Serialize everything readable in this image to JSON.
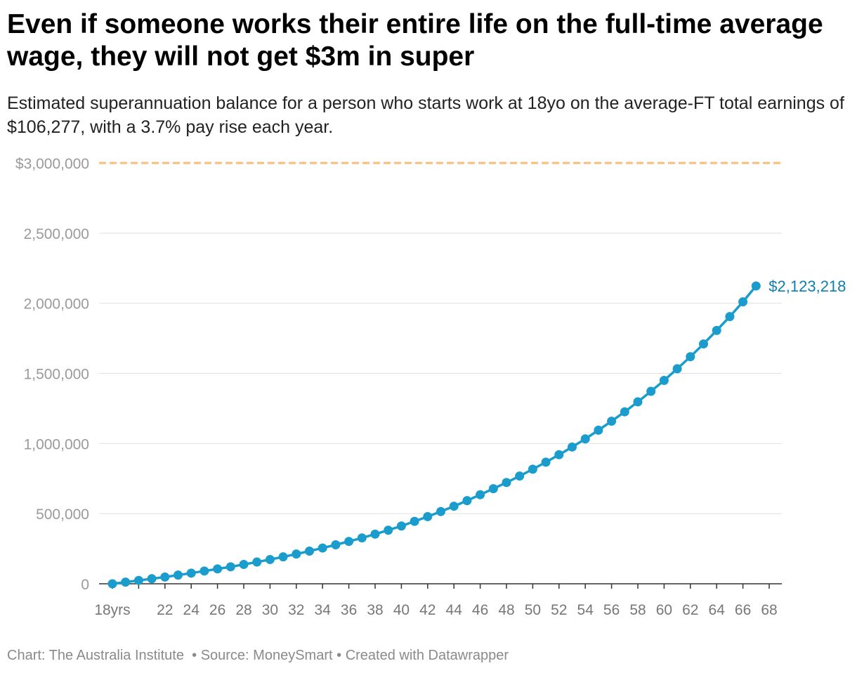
{
  "header": {
    "title": "Even if someone works their entire life on the full-time average wage, they will not get $3m in super",
    "subtitle": "Estimated superannuation balance for a person who starts work at 18yo on the average-FT total earnings of $106,277, with a 3.7% pay rise each year."
  },
  "footer": {
    "chart_credit": "Chart: The Australia Institute",
    "source": "Source: MoneySmart",
    "created_with": "Created with Datawrapper",
    "separator": "•"
  },
  "chart_data": {
    "type": "line",
    "title": "Even if someone works their entire life on the full-time average wage, they will not get $3m in super",
    "subtitle": "Estimated superannuation balance for a person who starts work at 18yo on the average-FT total earnings of $106,277, with a 3.7% pay rise each year.",
    "xlabel": "",
    "ylabel": "",
    "xlim": [
      18,
      68
    ],
    "ylim": [
      0,
      3000000
    ],
    "grid": true,
    "x_ticks": [
      18,
      22,
      24,
      26,
      28,
      30,
      32,
      34,
      36,
      38,
      40,
      42,
      44,
      46,
      48,
      50,
      52,
      54,
      56,
      58,
      60,
      62,
      64,
      66,
      68
    ],
    "x_tick_labels": [
      "18yrs",
      "22",
      "24",
      "26",
      "28",
      "30",
      "32",
      "34",
      "36",
      "38",
      "40",
      "42",
      "44",
      "46",
      "48",
      "50",
      "52",
      "54",
      "56",
      "58",
      "60",
      "62",
      "64",
      "66",
      "68"
    ],
    "y_ticks": [
      0,
      500000,
      1000000,
      1500000,
      2000000,
      2500000,
      3000000
    ],
    "y_tick_labels": [
      "0",
      "500,000",
      "1,000,000",
      "1,500,000",
      "2,000,000",
      "2,500,000",
      "$3,000,000"
    ],
    "reference_line": {
      "value": 3000000,
      "color": "#f6be7a",
      "style": "dashed"
    },
    "series": [
      {
        "color": "#1a9dcc",
        "x": [
          18,
          19,
          20,
          21,
          22,
          23,
          24,
          25,
          26,
          27,
          28,
          29,
          30,
          31,
          32,
          33,
          34,
          35,
          36,
          37,
          38,
          39,
          40,
          41,
          42,
          43,
          44,
          45,
          46,
          47,
          48,
          49,
          50,
          51,
          52,
          53,
          54,
          55,
          56,
          57,
          58,
          59,
          60,
          61,
          62,
          63,
          64,
          65,
          66,
          67
        ],
        "values": [
          0,
          12000,
          24000,
          36000,
          48000,
          62000,
          76000,
          91000,
          106000,
          121000,
          138000,
          155000,
          173000,
          192000,
          212000,
          233000,
          255000,
          278000,
          302000,
          327000,
          354000,
          382000,
          412000,
          445000,
          479000,
          515000,
          553000,
          593000,
          635000,
          678000,
          722000,
          768000,
          817000,
          867000,
          920000,
          975000,
          1033000,
          1095000,
          1159000,
          1226000,
          1297000,
          1372000,
          1450000,
          1533000,
          1619000,
          1710000,
          1806000,
          1905000,
          2010000,
          2123218
        ],
        "end_label": "$2,123,218"
      }
    ]
  }
}
